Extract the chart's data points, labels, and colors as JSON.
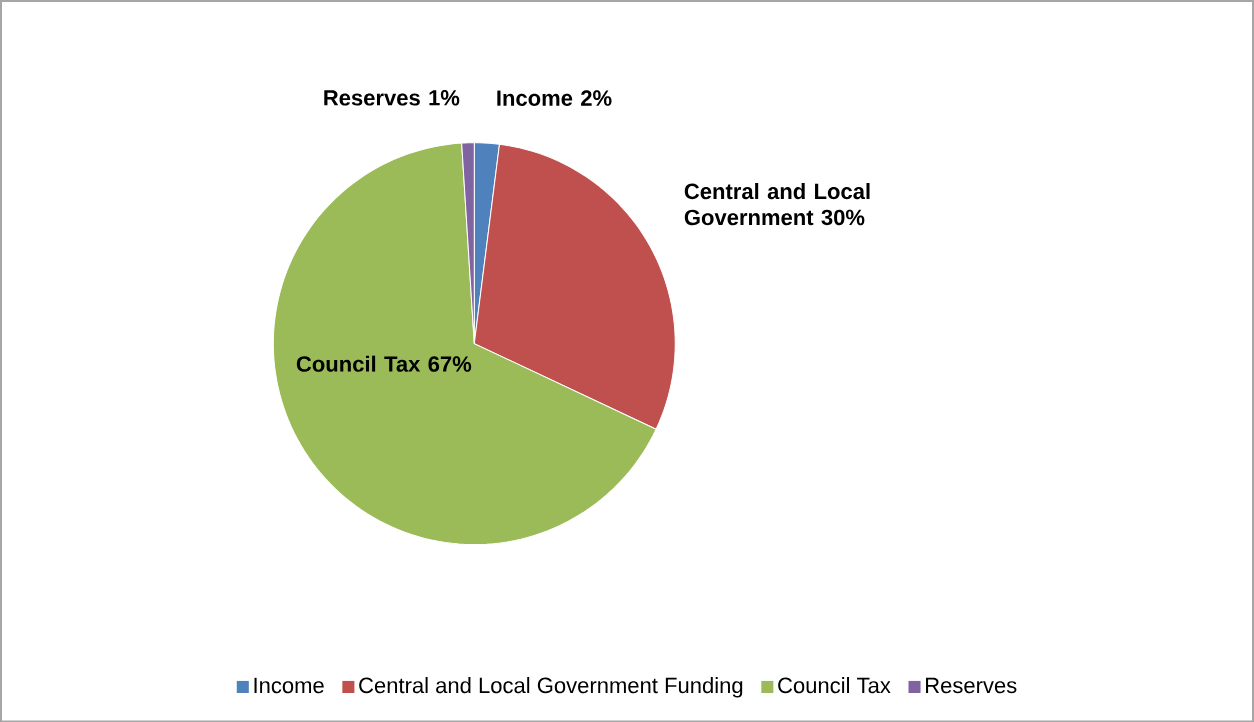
{
  "chart_data": {
    "type": "pie",
    "categories": [
      "Income",
      "Central and Local Government Funding",
      "Council Tax",
      "Reserves"
    ],
    "values": [
      2,
      30,
      67,
      1
    ],
    "colors": [
      "#4f81bd",
      "#c0504d",
      "#9bbb59",
      "#8064a2"
    ],
    "value_labels": [
      "Income 2%",
      "Central and Local Government 30%",
      "Council Tax 67%",
      "Reserves 1%"
    ],
    "legend": "bottom"
  }
}
